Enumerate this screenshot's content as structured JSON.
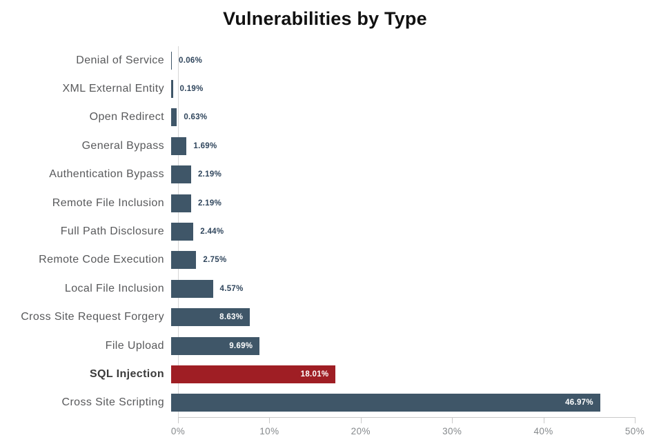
{
  "chart_data": {
    "type": "bar",
    "orientation": "horizontal",
    "title": "Vulnerabilities by Type",
    "categories": [
      "Denial of Service",
      "XML External Entity",
      "Open Redirect",
      "General Bypass",
      "Authentication Bypass",
      "Remote File Inclusion",
      "Full Path Disclosure",
      "Remote Code Execution",
      "Local File Inclusion",
      "Cross Site Request Forgery",
      "File Upload",
      "SQL Injection",
      "Cross Site Scripting"
    ],
    "values": [
      0.06,
      0.19,
      0.63,
      1.69,
      2.19,
      2.19,
      2.44,
      2.75,
      4.57,
      8.63,
      9.69,
      18.01,
      46.97
    ],
    "value_labels": [
      "0.06%",
      "0.19%",
      "0.63%",
      "1.69%",
      "2.19%",
      "2.19%",
      "2.44%",
      "2.75%",
      "4.57%",
      "8.63%",
      "9.69%",
      "18.01%",
      "46.97%"
    ],
    "highlight_category": "SQL Injection",
    "xlim": [
      0,
      50
    ],
    "x_tick_values": [
      0,
      10,
      20,
      30,
      40,
      50
    ],
    "x_tick_labels": [
      "0%",
      "10%",
      "20%",
      "30%",
      "40%",
      "50%"
    ],
    "legend": "none",
    "grid": "off",
    "colors": {
      "bar": "#3f5668",
      "highlight_bar": "#9f1e24",
      "value_outside": "#2f455c",
      "value_inside": "#ffffff",
      "category_label": "#58595b",
      "highlight_category_label": "#3a3a3a",
      "axis_line": "#c9c9c9",
      "tick_label": "#85898c",
      "title": "#111111"
    }
  }
}
